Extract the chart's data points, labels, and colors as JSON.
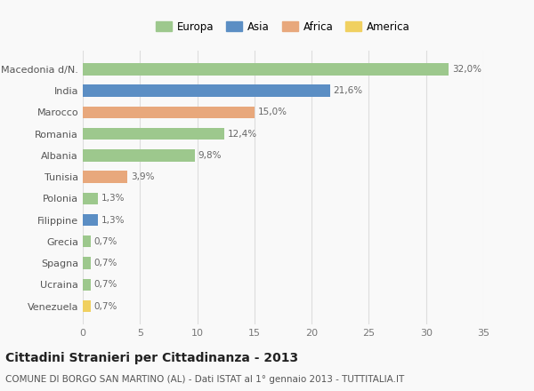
{
  "countries": [
    "Venezuela",
    "Ucraina",
    "Spagna",
    "Grecia",
    "Filippine",
    "Polonia",
    "Tunisia",
    "Albania",
    "Romania",
    "Marocco",
    "India",
    "Macedonia d/N."
  ],
  "values": [
    0.7,
    0.7,
    0.7,
    0.7,
    1.3,
    1.3,
    3.9,
    9.8,
    12.4,
    15.0,
    21.6,
    32.0
  ],
  "labels": [
    "0,7%",
    "0,7%",
    "0,7%",
    "0,7%",
    "1,3%",
    "1,3%",
    "3,9%",
    "9,8%",
    "12,4%",
    "15,0%",
    "21,6%",
    "32,0%"
  ],
  "colors": [
    "#f0d060",
    "#9dc88d",
    "#9dc88d",
    "#9dc88d",
    "#5b8ec4",
    "#9dc88d",
    "#e8a87c",
    "#9dc88d",
    "#9dc88d",
    "#e8a87c",
    "#5b8ec4",
    "#9dc88d"
  ],
  "legend_order": [
    "Europa",
    "Asia",
    "Africa",
    "America"
  ],
  "legend_colors": {
    "Europa": "#9dc88d",
    "Asia": "#5b8ec4",
    "Africa": "#e8a87c",
    "America": "#f0d060"
  },
  "title": "Cittadini Stranieri per Cittadinanza - 2013",
  "subtitle": "COMUNE DI BORGO SAN MARTINO (AL) - Dati ISTAT al 1° gennaio 2013 - TUTTITALIA.IT",
  "xlim": [
    0,
    35
  ],
  "xticks": [
    0,
    5,
    10,
    15,
    20,
    25,
    30,
    35
  ],
  "background_color": "#f9f9f9",
  "grid_color": "#dddddd",
  "title_fontsize": 10,
  "subtitle_fontsize": 7.5,
  "label_fontsize": 7.5,
  "ytick_fontsize": 8,
  "xtick_fontsize": 8,
  "legend_fontsize": 8.5
}
